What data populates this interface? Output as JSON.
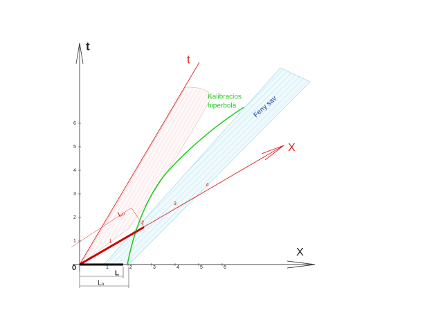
{
  "axes": {
    "t_label": "t",
    "x_label": "X",
    "origin": "0",
    "t_ticks": [
      1,
      2,
      3,
      4,
      5,
      6
    ],
    "x_ticks": [
      1,
      2,
      3,
      4,
      5,
      6
    ]
  },
  "moving_frame": {
    "t_label": "t",
    "x_label": "X",
    "x_ticks": [
      1,
      2,
      3,
      4
    ]
  },
  "annotations": {
    "hyperbola": [
      "Kalibracios",
      "hiperbola"
    ],
    "light_band": "Feny sav",
    "proper_length_top": "Lₒ",
    "length": "L",
    "proper_length_bottom": "Lₒ"
  }
}
